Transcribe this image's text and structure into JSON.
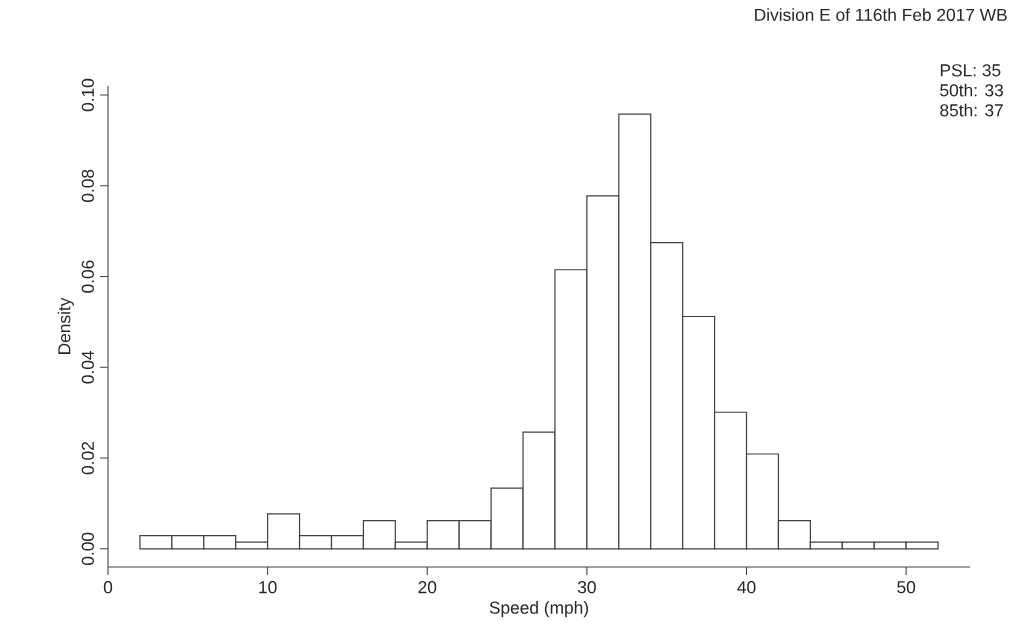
{
  "chart_data": {
    "type": "histogram",
    "title": "Division E of 116th Feb 2017 WB",
    "xlabel": "Speed (mph)",
    "ylabel": "Density",
    "bins": [
      2,
      4,
      6,
      8,
      10,
      12,
      14,
      16,
      18,
      20,
      22,
      24,
      26,
      28,
      30,
      32,
      34,
      36,
      38,
      40,
      42,
      44,
      46,
      48,
      50,
      52
    ],
    "values": [
      0.0029,
      0.0029,
      0.0029,
      0.0015,
      0.0077,
      0.0029,
      0.0029,
      0.0062,
      0.0015,
      0.0062,
      0.0062,
      0.0134,
      0.0257,
      0.0615,
      0.0778,
      0.0958,
      0.0675,
      0.0512,
      0.0301,
      0.0209,
      0.0062,
      0.0015,
      0.0015,
      0.0015,
      0.0015
    ],
    "color": "#ffffff",
    "xlim": [
      0,
      54
    ],
    "ylim": [
      -0.004,
      0.102
    ],
    "xticks": [
      0,
      10,
      20,
      30,
      40,
      50
    ],
    "yticks": [
      {
        "value": 0,
        "label": "0.00"
      },
      {
        "value": 0.02,
        "label": "0.02"
      },
      {
        "value": 0.04,
        "label": "0.04"
      },
      {
        "value": 0.06,
        "label": "0.06"
      },
      {
        "value": 0.08,
        "label": "0.08"
      },
      {
        "value": 0.1,
        "label": "0.10"
      }
    ],
    "annotations": [
      "PSL: 35",
      "50th: 33",
      "85th: 37"
    ]
  }
}
